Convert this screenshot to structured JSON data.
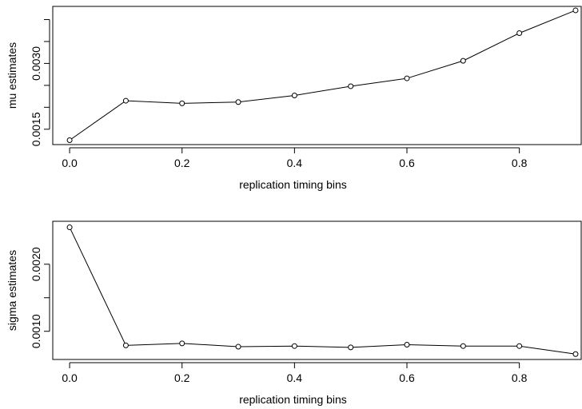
{
  "chart_data": [
    {
      "type": "line",
      "title": "",
      "xlabel": "replication timing bins",
      "ylabel": "mu estimates",
      "xlim": [
        -0.03,
        0.91
      ],
      "ylim": [
        0.00115,
        0.0043
      ],
      "x_ticks": [
        0.0,
        0.2,
        0.4,
        0.6,
        0.8
      ],
      "x_tick_labels": [
        "0.0",
        "0.2",
        "0.4",
        "0.6",
        "0.8"
      ],
      "y_ticks": [
        0.0015,
        0.002,
        0.0025,
        0.003,
        0.0035,
        0.004
      ],
      "y_tick_labels": [
        "0.0015",
        "",
        "",
        "0.0030",
        "",
        ""
      ],
      "series": [
        {
          "x": [
            0.0,
            0.1,
            0.2,
            0.3,
            0.4,
            0.5,
            0.6,
            0.7,
            0.8,
            0.9
          ],
          "y": [
            0.00125,
            0.00215,
            0.00209,
            0.00212,
            0.00227,
            0.00248,
            0.00266,
            0.00306,
            0.00369,
            0.00421
          ]
        }
      ],
      "marker": "open-circle",
      "grid": false
    },
    {
      "type": "line",
      "title": "",
      "xlabel": "replication timing bins",
      "ylabel": "sigma estimates",
      "xlim": [
        -0.03,
        0.91
      ],
      "ylim": [
        0.00058,
        0.00264
      ],
      "x_ticks": [
        0.0,
        0.2,
        0.4,
        0.6,
        0.8
      ],
      "x_tick_labels": [
        "0.0",
        "0.2",
        "0.4",
        "0.6",
        "0.8"
      ],
      "y_ticks": [
        0.001,
        0.0015,
        0.002
      ],
      "y_tick_labels": [
        "0.0010",
        "",
        "0.0020"
      ],
      "series": [
        {
          "x": [
            0.0,
            0.1,
            0.2,
            0.3,
            0.4,
            0.5,
            0.6,
            0.7,
            0.8,
            0.9
          ],
          "y": [
            0.00255,
            0.00079,
            0.00082,
            0.00077,
            0.00078,
            0.00076,
            0.0008,
            0.00078,
            0.00078,
            0.00066
          ]
        }
      ],
      "marker": "open-circle",
      "grid": false
    }
  ]
}
